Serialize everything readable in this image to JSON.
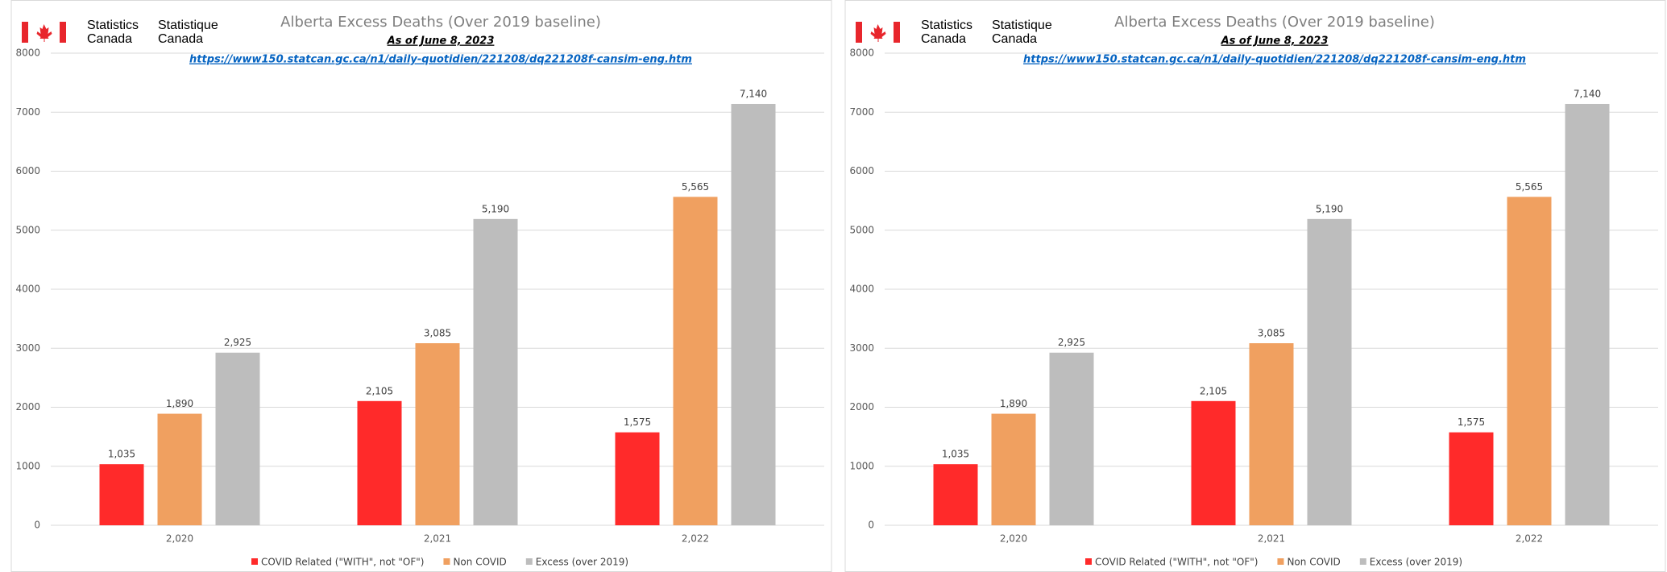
{
  "chart_data": [
    {
      "type": "bar",
      "logo": {
        "en": [
          "Statistics",
          "Canada"
        ],
        "fr": [
          "Statistique",
          "Canada"
        ]
      },
      "title": "Alberta Excess Deaths (Over 2019 baseline)",
      "subtitle": "As of June 8, 2023",
      "link": "https://www150.statcan.gc.ca/n1/daily-quotidien/221208/dq221208f-cansim-eng.htm",
      "categories": [
        "2,020",
        "2,021",
        "2,022"
      ],
      "series": [
        {
          "name": "COVID Related (\"WITH\", not \"OF\")",
          "color": "#ff2a2a",
          "values": [
            1035,
            2105,
            1575
          ],
          "value_labels": [
            "1,035",
            "2,105",
            "1,575"
          ]
        },
        {
          "name": "Non COVID",
          "color": "#f0a060",
          "values": [
            1890,
            3085,
            5565
          ],
          "value_labels": [
            "1,890",
            "3,085",
            "5,565"
          ]
        },
        {
          "name": "Excess (over 2019)",
          "color": "#bdbdbd",
          "values": [
            2925,
            5190,
            7140
          ],
          "value_labels": [
            "2,925",
            "5,190",
            "7,140"
          ]
        }
      ],
      "ylim": [
        0,
        8000
      ],
      "yticks": [
        0,
        1000,
        2000,
        3000,
        4000,
        5000,
        6000,
        7000,
        8000
      ],
      "grid": true,
      "legend": "bottom"
    },
    {
      "type": "bar",
      "logo": {
        "en": [
          "Statistics",
          "Canada"
        ],
        "fr": [
          "Statistique",
          "Canada"
        ]
      },
      "title": "Alberta Excess Deaths (Over 2019 baseline)",
      "subtitle": "As of June 8, 2023",
      "link": "https://www150.statcan.gc.ca/n1/daily-quotidien/221208/dq221208f-cansim-eng.htm",
      "categories": [
        "2,020",
        "2,021",
        "2,022"
      ],
      "series": [
        {
          "name": "COVID Related (\"WITH\", not \"OF\")",
          "color": "#ff2a2a",
          "values": [
            1035,
            2105,
            1575
          ],
          "value_labels": [
            "1,035",
            "2,105",
            "1,575"
          ]
        },
        {
          "name": "Non COVID",
          "color": "#f0a060",
          "values": [
            1890,
            3085,
            5565
          ],
          "value_labels": [
            "1,890",
            "3,085",
            "5,565"
          ]
        },
        {
          "name": "Excess (over 2019)",
          "color": "#bdbdbd",
          "values": [
            2925,
            5190,
            7140
          ],
          "value_labels": [
            "2,925",
            "5,190",
            "7,140"
          ]
        }
      ],
      "ylim": [
        0,
        8000
      ],
      "yticks": [
        0,
        1000,
        2000,
        3000,
        4000,
        5000,
        6000,
        7000,
        8000
      ],
      "grid": true,
      "legend": "bottom"
    }
  ]
}
